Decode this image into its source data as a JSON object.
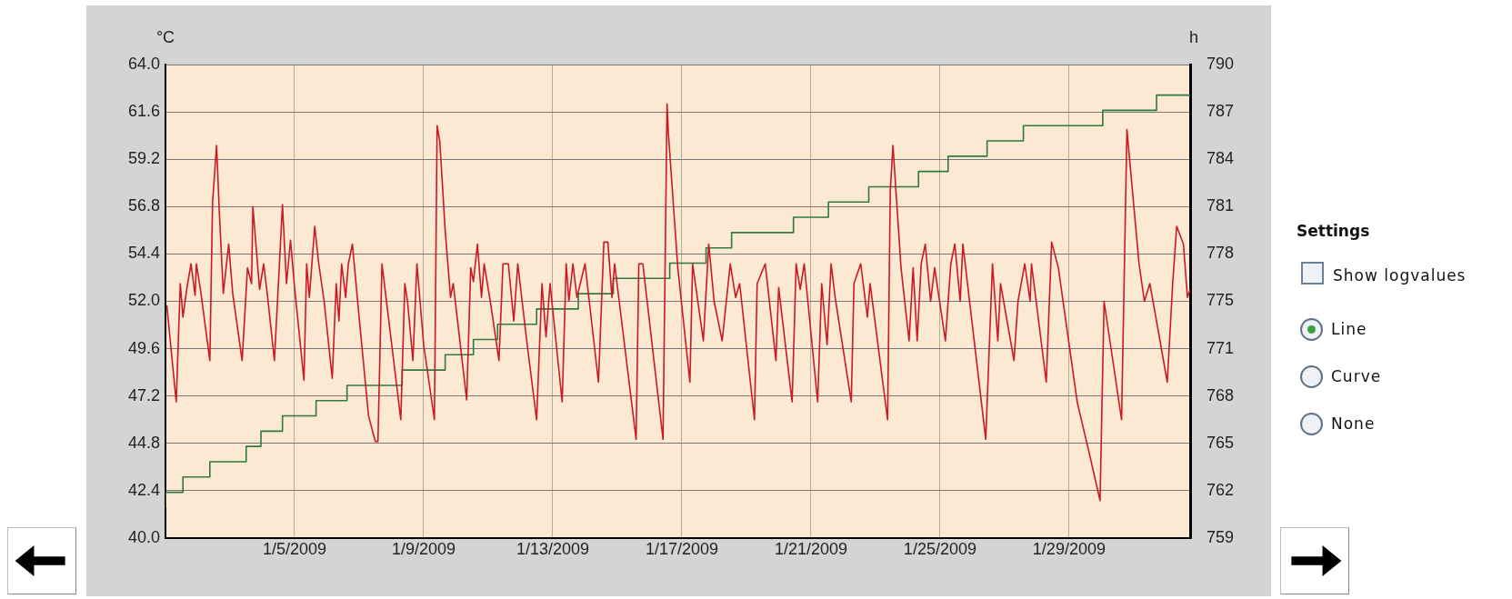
{
  "chart_data": {
    "type": "line",
    "ylabel": "°C",
    "y2label": "h",
    "xlim": [
      "2009-01-01T00:00",
      "2009-02-01T18:00"
    ],
    "xticks": [
      {
        "value": "2009-01-05",
        "label": "1/5/2009"
      },
      {
        "value": "2009-01-09",
        "label": "1/9/2009"
      },
      {
        "value": "2009-01-13",
        "label": "1/13/2009"
      },
      {
        "value": "2009-01-17",
        "label": "1/17/2009"
      },
      {
        "value": "2009-01-21",
        "label": "1/21/2009"
      },
      {
        "value": "2009-01-25",
        "label": "1/25/2009"
      },
      {
        "value": "2009-01-29",
        "label": "1/29/2009"
      }
    ],
    "ylim": [
      40,
      64
    ],
    "yticks": [
      {
        "value": 40,
        "label": "40.0"
      },
      42.4,
      44.8,
      47.2,
      49.6,
      {
        "value": 52,
        "label": "52.0"
      },
      54.4,
      56.8,
      59.2,
      61.6,
      {
        "value": 64,
        "label": "64.0"
      }
    ],
    "y2lim": [
      759,
      790
    ],
    "y2ticks": [
      759,
      {
        "value": 762.1,
        "label": "762"
      },
      {
        "value": 765.2,
        "label": "765"
      },
      {
        "value": 768.3,
        "label": "768"
      },
      {
        "value": 771.4,
        "label": "771"
      },
      {
        "value": 774.5,
        "label": "775"
      },
      {
        "value": 777.6,
        "label": "778"
      },
      {
        "value": 780.7,
        "label": "781"
      },
      {
        "value": 783.8,
        "label": "784"
      },
      {
        "value": 786.9,
        "label": "787"
      },
      790
    ],
    "grid": true,
    "marker": "none",
    "line_style": "solid",
    "series": [
      {
        "type": "line",
        "color": "#cc1a24",
        "x": [
          "2009-01-01T01:00",
          "2009-01-01T08:00",
          "2009-01-01T11:00",
          "2009-01-01T13:00",
          "2009-01-01T16:00",
          "2009-01-01T19:00",
          "2009-01-01T22:00",
          "2009-01-01T23:00",
          "2009-01-02T02:00",
          "2009-01-02T09:00",
          "2009-01-02T11:00",
          "2009-01-02T14:00",
          "2009-01-02T16:00",
          "2009-01-02T19:00",
          "2009-01-02T23:00",
          "2009-01-03T02:00",
          "2009-01-03T09:00",
          "2009-01-03T13:00",
          "2009-01-03T16:00",
          "2009-01-03T17:00",
          "2009-01-03T22:00",
          "2009-01-04T01:00",
          "2009-01-04T04:00",
          "2009-01-04T09:00",
          "2009-01-04T12:00",
          "2009-01-04T15:00",
          "2009-01-04T18:00",
          "2009-01-04T21:00",
          "2009-01-05T00:00",
          "2009-01-05T07:00",
          "2009-01-05T09:00",
          "2009-01-05T11:00",
          "2009-01-05T15:00",
          "2009-01-05T18:00",
          "2009-01-05T22:00",
          "2009-01-06T04:00",
          "2009-01-06T07:00",
          "2009-01-06T09:00",
          "2009-01-06T11:00",
          "2009-01-06T14:00",
          "2009-01-06T16:00",
          "2009-01-06T19:00",
          "2009-01-07T00:00",
          "2009-01-07T07:00",
          "2009-01-07T12:00",
          "2009-01-07T14:00",
          "2009-01-07T17:00",
          "2009-01-07T20:00",
          "2009-01-08T07:00",
          "2009-01-08T10:00",
          "2009-01-08T12:00",
          "2009-01-08T16:00",
          "2009-01-08T19:00",
          "2009-01-09T00:00",
          "2009-01-09T08:00",
          "2009-01-09T10:00",
          "2009-01-09T12:00",
          "2009-01-09T16:00",
          "2009-01-09T20:00",
          "2009-01-09T22:00",
          "2009-01-10T08:00",
          "2009-01-10T11:00",
          "2009-01-10T13:00",
          "2009-01-10T16:00",
          "2009-01-10T19:00",
          "2009-01-10T21:00",
          "2009-01-11T02:00",
          "2009-01-11T08:00",
          "2009-01-11T11:00",
          "2009-01-11T15:00",
          "2009-01-11T19:00",
          "2009-01-11T22:00",
          "2009-01-12T05:00",
          "2009-01-12T12:00",
          "2009-01-12T16:00",
          "2009-01-12T19:00",
          "2009-01-12T22:00",
          "2009-01-13T07:00",
          "2009-01-13T10:00",
          "2009-01-13T12:00",
          "2009-01-13T15:00",
          "2009-01-13T18:00",
          "2009-01-14T00:00",
          "2009-01-14T10:00",
          "2009-01-14T14:00",
          "2009-01-14T17:00",
          "2009-01-14T20:00",
          "2009-01-14T22:00",
          "2009-01-15T14:00",
          "2009-01-15T16:00",
          "2009-01-15T19:00",
          "2009-01-16T10:00",
          "2009-01-16T13:00",
          "2009-01-16T14:00",
          "2009-01-16T21:00",
          "2009-01-17T06:00",
          "2009-01-17T08:00",
          "2009-01-17T16:00",
          "2009-01-17T20:00",
          "2009-01-18T00:00",
          "2009-01-18T06:00",
          "2009-01-18T12:00",
          "2009-01-18T16:00",
          "2009-01-18T19:00",
          "2009-01-19T06:00",
          "2009-01-19T08:00",
          "2009-01-19T14:00",
          "2009-01-19T22:00",
          "2009-01-20T00:00",
          "2009-01-20T10:00",
          "2009-01-20T13:00",
          "2009-01-20T16:00",
          "2009-01-20T19:00",
          "2009-01-21T05:00",
          "2009-01-21T08:00",
          "2009-01-21T12:00",
          "2009-01-21T15:00",
          "2009-01-21T18:00",
          "2009-01-22T06:00",
          "2009-01-22T08:00",
          "2009-01-22T13:00",
          "2009-01-22T18:00",
          "2009-01-22T20:00",
          "2009-01-23T09:00",
          "2009-01-23T11:00",
          "2009-01-23T13:00",
          "2009-01-23T19:00",
          "2009-01-24T01:00",
          "2009-01-24T04:00",
          "2009-01-24T07:00",
          "2009-01-24T10:00",
          "2009-01-24T13:00",
          "2009-01-24T17:00",
          "2009-01-24T20:00",
          "2009-01-25T04:00",
          "2009-01-25T08:00",
          "2009-01-25T11:00",
          "2009-01-25T15:00",
          "2009-01-25T17:00",
          "2009-01-26T10:00",
          "2009-01-26T15:00",
          "2009-01-26T19:00",
          "2009-01-26T21:00",
          "2009-01-27T07:00",
          "2009-01-27T10:00",
          "2009-01-27T15:00",
          "2009-01-27T19:00",
          "2009-01-27T20:00",
          "2009-01-28T07:00",
          "2009-01-28T11:00",
          "2009-01-28T16:00",
          "2009-01-29T06:00",
          "2009-01-29T16:00",
          "2009-01-29T23:00",
          "2009-01-30T02:00",
          "2009-01-30T15:00",
          "2009-01-30T19:00",
          "2009-01-31T04:00",
          "2009-01-31T08:00",
          "2009-01-31T12:00",
          "2009-01-31T17:00",
          "2009-02-01T01:00",
          "2009-02-01T05:00",
          "2009-02-01T08:00",
          "2009-02-01T13:00",
          "2009-02-01T16:00",
          "2009-02-01T18:00"
        ],
        "values": [
          51.8,
          46.9,
          52.9,
          51.2,
          52.7,
          53.9,
          52.3,
          53.9,
          52.6,
          49.0,
          57.0,
          59.9,
          56.6,
          52.4,
          54.9,
          52.4,
          49.0,
          53.7,
          52.9,
          56.8,
          52.6,
          53.9,
          52.2,
          49.0,
          52.9,
          56.9,
          52.9,
          55.1,
          52.7,
          48.0,
          53.9,
          52.2,
          55.8,
          53.9,
          52.0,
          48.1,
          52.9,
          51.0,
          53.9,
          52.2,
          53.9,
          54.9,
          51.2,
          46.2,
          44.9,
          44.9,
          53.9,
          52.2,
          46.0,
          52.9,
          52.0,
          49.0,
          53.9,
          49.8,
          46.0,
          60.9,
          60.1,
          55.6,
          52.2,
          52.9,
          47.0,
          53.7,
          53.0,
          54.9,
          52.2,
          53.9,
          51.8,
          49.0,
          53.9,
          53.9,
          51.0,
          53.9,
          49.8,
          46.0,
          52.9,
          50.2,
          52.9,
          46.9,
          53.9,
          52.0,
          53.9,
          52.2,
          53.9,
          47.9,
          55.0,
          55.0,
          52.2,
          53.9,
          45.0,
          53.9,
          53.9,
          45.0,
          62.0,
          60.5,
          53.7,
          47.9,
          53.9,
          50.0,
          54.9,
          52.0,
          50.0,
          53.9,
          52.2,
          52.9,
          46.0,
          52.9,
          53.9,
          49.0,
          52.7,
          46.9,
          53.9,
          52.6,
          53.9,
          46.9,
          52.9,
          49.8,
          53.9,
          52.2,
          46.9,
          52.9,
          53.9,
          51.2,
          52.9,
          46.0,
          57.6,
          59.9,
          53.7,
          50.0,
          53.7,
          50.0,
          53.9,
          54.9,
          52.0,
          53.7,
          50.0,
          53.9,
          54.9,
          52.0,
          54.9,
          45.0,
          53.9,
          50.0,
          52.9,
          49.0,
          52.0,
          53.9,
          52.0,
          53.9,
          47.9,
          55.0,
          53.7,
          46.9,
          44.0,
          41.9,
          52.0,
          46.0,
          60.7,
          53.9,
          52.0,
          52.9,
          51.0,
          47.9,
          52.9,
          55.8,
          54.9,
          52.2,
          52.6
        ]
      },
      {
        "type": "step",
        "axis": "y2",
        "color": "#2f7a3c",
        "x": [
          "2009-01-01T00:00",
          "2009-01-01T13:00",
          "2009-01-02T09:00",
          "2009-01-03T12:00",
          "2009-01-03T23:00",
          "2009-01-04T15:00",
          "2009-01-05T16:00",
          "2009-01-06T15:00",
          "2009-01-08T08:00",
          "2009-01-09T16:00",
          "2009-01-10T13:00",
          "2009-01-11T07:00",
          "2009-01-12T12:00",
          "2009-01-13T19:00",
          "2009-01-14T21:00",
          "2009-01-16T15:00",
          "2009-01-17T18:00",
          "2009-01-18T13:00",
          "2009-01-20T11:00",
          "2009-01-21T13:00",
          "2009-01-22T19:00",
          "2009-01-24T08:00",
          "2009-01-25T06:00",
          "2009-01-26T11:00",
          "2009-01-27T14:00",
          "2009-01-30T01:00",
          "2009-01-31T17:00",
          "2009-02-01T11:00",
          "2009-02-01T18:00"
        ],
        "values": [
          761,
          762,
          763,
          764,
          765,
          766,
          767,
          768,
          769,
          770,
          771,
          772,
          773,
          774,
          775,
          776,
          777,
          778,
          779,
          780,
          781,
          782,
          783,
          784,
          785,
          786,
          787,
          788,
          788
        ]
      }
    ],
    "annotations": [
      "Settings",
      "Show logvalues",
      "Line",
      "Curve",
      "None"
    ]
  }
}
